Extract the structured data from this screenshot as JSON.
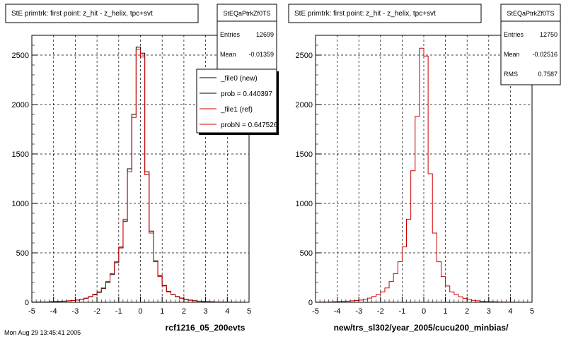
{
  "colors": {
    "background": "#ffffff",
    "frame": "#000000",
    "new_series": "#000000",
    "ref_series": "#cc0000",
    "grid": "#000000"
  },
  "footer_text": "Mon Aug 29 13:45:41 2005",
  "chart_data": [
    {
      "type": "bar",
      "title": "StE primtrk: first point: z_hit - z_helix, tpc+svt",
      "xlabel": "rcf1216_05_200evts",
      "ylabel": "",
      "xlim": [
        -5,
        5
      ],
      "ylim": [
        0,
        2700
      ],
      "x_ticks": [
        -5,
        -4,
        -3,
        -2,
        -1,
        0,
        1,
        2,
        3,
        4,
        5
      ],
      "y_ticks": [
        0,
        500,
        1000,
        1500,
        2000,
        2500
      ],
      "grid": true,
      "bin_edges_start": -5,
      "bin_width": 0.2,
      "stats": {
        "name": "StEQaPtrkZf0TS",
        "rows": [
          {
            "label": "Entries",
            "value": "12699"
          },
          {
            "label": "Mean",
            "value": "-0.01359"
          }
        ]
      },
      "legend": {
        "placement": "top-right",
        "entries": [
          {
            "label": "_file0 (new)",
            "color": "#000000"
          },
          {
            "label": "prob = 0.440397",
            "color": "#000000"
          },
          {
            "label": "_file1 (ref)",
            "color": "#cc0000"
          },
          {
            "label": "probN = 0.647526",
            "color": "#cc0000"
          }
        ]
      },
      "series": [
        {
          "name": "_file0 (new)",
          "color": "#000000",
          "values": [
            2,
            3,
            3,
            4,
            6,
            8,
            10,
            12,
            15,
            18,
            22,
            30,
            40,
            55,
            75,
            100,
            140,
            200,
            280,
            400,
            550,
            820,
            1350,
            1900,
            2580,
            2520,
            1320,
            720,
            420,
            270,
            170,
            110,
            80,
            58,
            42,
            30,
            22,
            16,
            12,
            9,
            7,
            5,
            4,
            3,
            2,
            2,
            1,
            1,
            1,
            0
          ]
        },
        {
          "name": "_file1 (ref)",
          "color": "#cc0000",
          "values": [
            2,
            3,
            3,
            4,
            6,
            8,
            10,
            12,
            15,
            18,
            22,
            30,
            42,
            58,
            80,
            105,
            145,
            210,
            290,
            410,
            560,
            840,
            1320,
            1870,
            2560,
            2480,
            1290,
            700,
            410,
            260,
            165,
            105,
            78,
            55,
            40,
            28,
            20,
            15,
            11,
            8,
            6,
            5,
            4,
            3,
            2,
            2,
            1,
            1,
            1,
            0
          ]
        }
      ]
    },
    {
      "type": "bar",
      "title": "StE primtrk: first point: z_hit - z_helix, tpc+svt",
      "xlabel": "new/trs_sl302/year_2005/cucu200_minbias/",
      "ylabel": "",
      "xlim": [
        -5,
        5
      ],
      "ylim": [
        0,
        2700
      ],
      "x_ticks": [
        -5,
        -4,
        -3,
        -2,
        -1,
        0,
        1,
        2,
        3,
        4,
        5
      ],
      "y_ticks": [
        0,
        500,
        1000,
        1500,
        2000,
        2500
      ],
      "grid": true,
      "bin_edges_start": -5,
      "bin_width": 0.2,
      "stats": {
        "name": "StEQaPtrkZf0TS",
        "rows": [
          {
            "label": "Entries",
            "value": "12750"
          },
          {
            "label": "Mean",
            "value": "-0.02516"
          },
          {
            "label": "RMS",
            "value": "0.7587"
          }
        ]
      },
      "series": [
        {
          "name": "",
          "color": "#cc0000",
          "values": [
            2,
            3,
            3,
            4,
            6,
            8,
            10,
            12,
            15,
            18,
            22,
            30,
            42,
            58,
            80,
            105,
            145,
            210,
            290,
            410,
            560,
            840,
            1330,
            1880,
            2570,
            2490,
            1300,
            700,
            410,
            260,
            165,
            105,
            78,
            55,
            40,
            28,
            20,
            15,
            11,
            8,
            6,
            5,
            4,
            3,
            2,
            2,
            1,
            1,
            1,
            0
          ]
        }
      ]
    }
  ]
}
